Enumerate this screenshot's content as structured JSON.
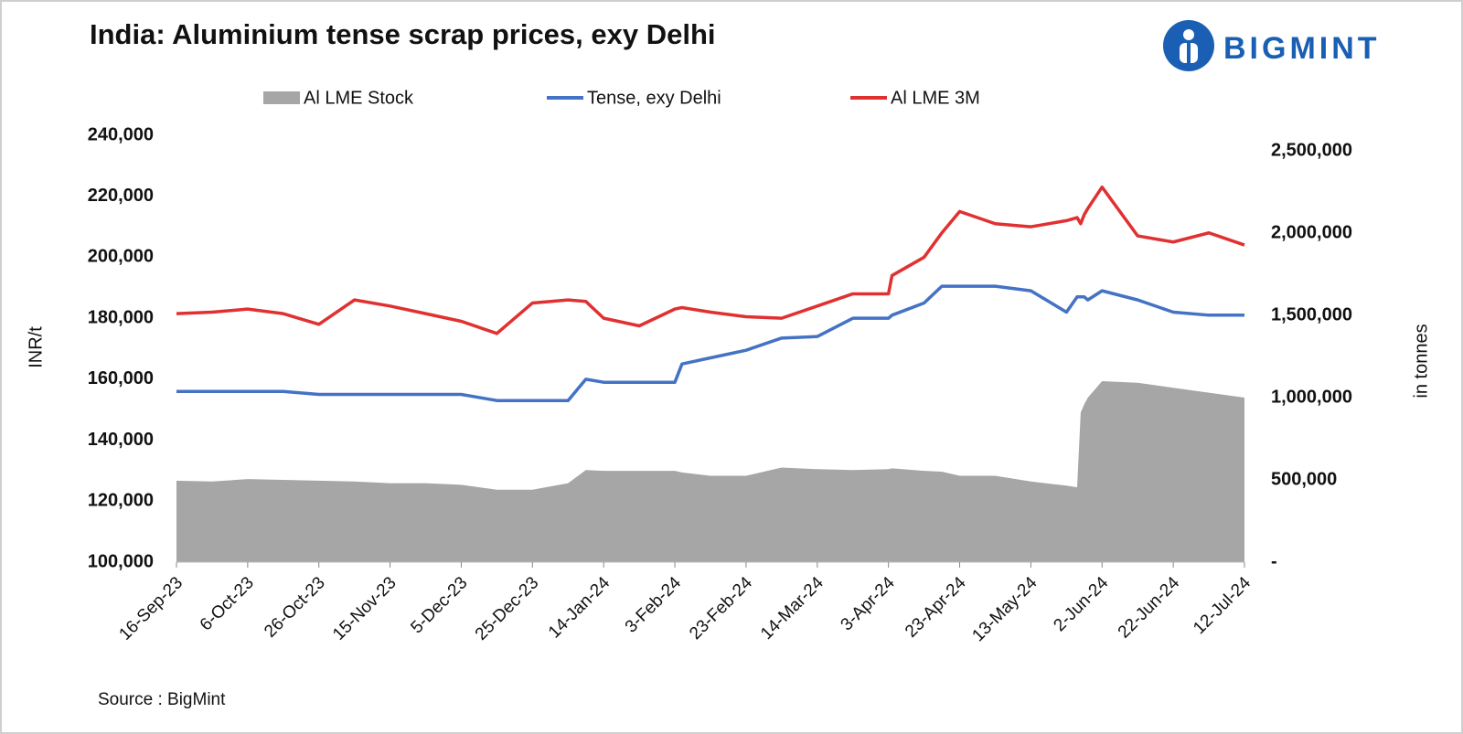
{
  "chart_data": {
    "type": "line",
    "title": "India: Aluminium tense scrap prices, exy Delhi",
    "logo": "BIGMINT",
    "source": "Source : BigMint",
    "y_label": "INR/t",
    "y2_label": "in tonnes",
    "x": [
      "2023-09-16",
      "2023-09-26",
      "2023-10-06",
      "2023-10-16",
      "2023-10-26",
      "2023-11-05",
      "2023-11-15",
      "2023-11-25",
      "2023-12-05",
      "2023-12-15",
      "2023-12-25",
      "2024-01-04",
      "2024-01-09",
      "2024-01-14",
      "2024-01-24",
      "2024-02-03",
      "2024-02-05",
      "2024-02-13",
      "2024-02-23",
      "2024-03-04",
      "2024-03-14",
      "2024-03-24",
      "2024-04-03",
      "2024-04-04",
      "2024-04-13",
      "2024-04-18",
      "2024-04-23",
      "2024-05-03",
      "2024-05-13",
      "2024-05-23",
      "2024-05-26",
      "2024-05-27",
      "2024-05-28",
      "2024-05-29",
      "2024-06-02",
      "2024-06-12",
      "2024-06-22",
      "2024-07-02",
      "2024-07-12"
    ],
    "xlim": [
      "2023-09-16",
      "2024-07-12"
    ],
    "xticks": [
      {
        "value": "2023-09-16",
        "label": "16-Sep-23"
      },
      {
        "value": "2023-10-06",
        "label": "6-Oct-23"
      },
      {
        "value": "2023-10-26",
        "label": "26-Oct-23"
      },
      {
        "value": "2023-11-15",
        "label": "15-Nov-23"
      },
      {
        "value": "2023-12-05",
        "label": "5-Dec-23"
      },
      {
        "value": "2023-12-25",
        "label": "25-Dec-23"
      },
      {
        "value": "2024-01-14",
        "label": "14-Jan-24"
      },
      {
        "value": "2024-02-03",
        "label": "3-Feb-24"
      },
      {
        "value": "2024-02-23",
        "label": "23-Feb-24"
      },
      {
        "value": "2024-03-14",
        "label": "14-Mar-24"
      },
      {
        "value": "2024-04-03",
        "label": "3-Apr-24"
      },
      {
        "value": "2024-04-23",
        "label": "23-Apr-24"
      },
      {
        "value": "2024-05-13",
        "label": "13-May-24"
      },
      {
        "value": "2024-06-02",
        "label": "2-Jun-24"
      },
      {
        "value": "2024-06-22",
        "label": "22-Jun-24"
      },
      {
        "value": "2024-07-12",
        "label": "12-Jul-24"
      }
    ],
    "ylim": [
      100000,
      240000
    ],
    "yticks": [
      {
        "value": 100000,
        "label": "100,000"
      },
      {
        "value": 120000,
        "label": "120,000"
      },
      {
        "value": 140000,
        "label": "140,000"
      },
      {
        "value": 160000,
        "label": "160,000"
      },
      {
        "value": 180000,
        "label": "180,000"
      },
      {
        "value": 200000,
        "label": "200,000"
      },
      {
        "value": 220000,
        "label": "220,000"
      },
      {
        "value": 240000,
        "label": "240,000"
      }
    ],
    "y2lim": [
      0,
      2500000
    ],
    "y2ticks": [
      {
        "value": 0,
        "label": "-"
      },
      {
        "value": 500000,
        "label": "500,000"
      },
      {
        "value": 1000000,
        "label": "1,000,000"
      },
      {
        "value": 1500000,
        "label": "1,500,000"
      },
      {
        "value": 2000000,
        "label": "2,000,000"
      },
      {
        "value": 2500000,
        "label": "2,500,000"
      }
    ],
    "series": [
      {
        "name": "Al LME Stock",
        "color": "#a6a6a6",
        "kind": "area",
        "axis": "y2",
        "values": [
          495000,
          490000,
          505000,
          500000,
          495000,
          490000,
          480000,
          480000,
          470000,
          440000,
          440000,
          480000,
          560000,
          555000,
          555000,
          555000,
          545000,
          525000,
          525000,
          575000,
          565000,
          560000,
          565000,
          570000,
          555000,
          550000,
          525000,
          525000,
          490000,
          465000,
          455000,
          910000,
          960000,
          1000000,
          1100000,
          1090000,
          1060000,
          1030000,
          1000000
        ]
      },
      {
        "name": "Tense, exy Delhi",
        "color": "#4472c4",
        "kind": "line",
        "values": [
          156000,
          156000,
          156000,
          156000,
          155000,
          155000,
          155000,
          155000,
          155000,
          153000,
          153000,
          153000,
          160000,
          159000,
          159000,
          159000,
          165000,
          167000,
          169500,
          173500,
          174000,
          180000,
          180000,
          181000,
          185000,
          190500,
          190500,
          190500,
          189000,
          182000,
          187000,
          187000,
          187000,
          186000,
          189000,
          186000,
          182000,
          181000,
          181000
        ]
      },
      {
        "name": "Al LME 3M",
        "color": "#e03131",
        "kind": "line",
        "values": [
          181500,
          182000,
          183000,
          181500,
          178000,
          186000,
          184000,
          181500,
          179000,
          175000,
          185000,
          186000,
          185500,
          180000,
          177500,
          183000,
          183500,
          182000,
          180500,
          180000,
          184000,
          188000,
          188000,
          194000,
          200000,
          208000,
          215000,
          211000,
          210000,
          212000,
          213000,
          211000,
          214000,
          216000,
          223000,
          207000,
          205000,
          208000,
          204000
        ]
      }
    ]
  }
}
